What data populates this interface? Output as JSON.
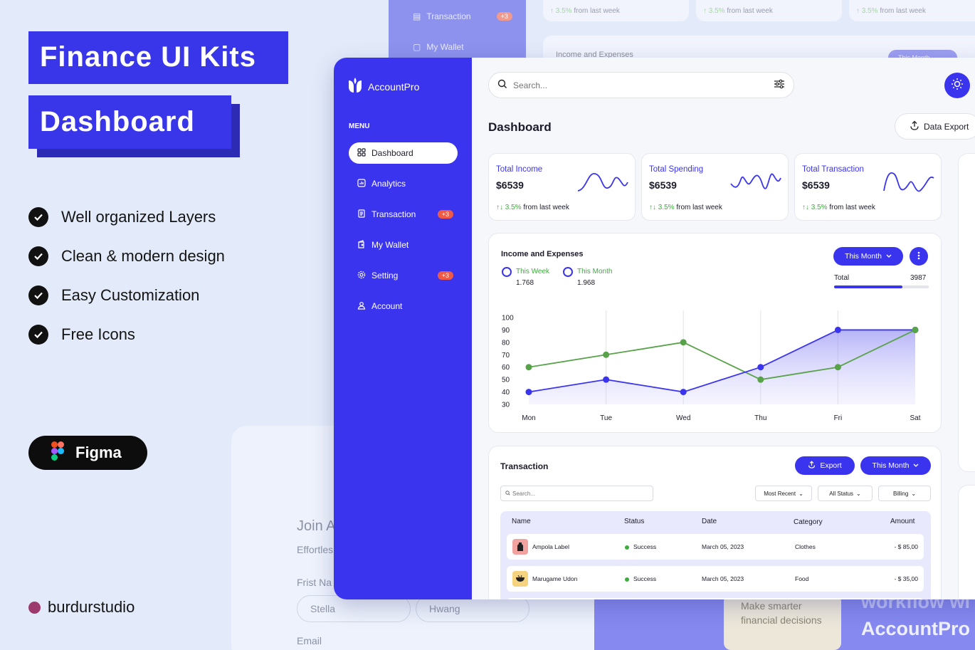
{
  "hero": {
    "line1": "Finance UI Kits",
    "line2": "Dashboard",
    "features": [
      "Well organized Layers",
      "Clean & modern design",
      "Easy Customization",
      "Free Icons"
    ],
    "figma_label": "Figma",
    "studio": "burdurstudio"
  },
  "background": {
    "side_items": [
      {
        "label": "Transaction",
        "badge": "+3"
      },
      {
        "label": "My Wallet"
      }
    ],
    "stat_foot": {
      "change": "3.5%",
      "text": "from last week"
    },
    "income_title": "Income and Expenses",
    "month_btn": "This Month",
    "form": {
      "title": "Join A",
      "subtitle": "Effortles",
      "first_name_label": "Frist Na",
      "first_name_value": "Stella",
      "last_name_value": "Hwang",
      "email_label": "Email"
    },
    "promo_note": "Make smarter financial decisions",
    "promo_line1": "workflow wi",
    "promo_brand": "AccountPro"
  },
  "app": {
    "brand": "AccountPro",
    "menu_label": "MENU",
    "nav": [
      {
        "label": "Dashboard",
        "icon": "grid-icon",
        "active": true
      },
      {
        "label": "Analytics",
        "icon": "chart-icon"
      },
      {
        "label": "Transaction",
        "icon": "receipt-icon",
        "badge": "+3"
      },
      {
        "label": "My Wallet",
        "icon": "wallet-icon"
      },
      {
        "label": "Setting",
        "icon": "gear-icon",
        "badge": "+3"
      },
      {
        "label": "Account",
        "icon": "user-icon"
      }
    ],
    "search_placeholder": "Search...",
    "page_title": "Dashboard",
    "export_label": "Data Export",
    "stats": [
      {
        "label": "Total Income",
        "value": "$6539",
        "change": "3.5%",
        "note": "from last week"
      },
      {
        "label": "Total Spending",
        "value": "$6539",
        "change": "3.5%",
        "note": "from last week"
      },
      {
        "label": "Total Transaction",
        "value": "$6539",
        "change": "3.5%",
        "note": "from last week"
      }
    ],
    "income_panel": {
      "title": "Income and Expenses",
      "month_btn": "This Month",
      "legend": [
        {
          "name": "This Week",
          "value": "1.768",
          "color": "#3b34ef"
        },
        {
          "name": "This Month",
          "value": "1.968",
          "color": "#3b34ef"
        }
      ],
      "total_label": "Total",
      "total_value": "3987",
      "total_progress": 0.72
    },
    "transaction_panel": {
      "title": "Transaction",
      "export_btn": "Export",
      "month_btn": "This Month",
      "search_placeholder": "Search...",
      "filters": [
        "Most Recent",
        "All Status",
        "Billing"
      ],
      "columns": [
        "Name",
        "Status",
        "Date",
        "Category",
        "Amount"
      ],
      "rows": [
        {
          "name": "Ampola Label",
          "status": "Success",
          "date": "March 05, 2023",
          "category": "Clothes",
          "amount": "- $ 85,00",
          "icon_bg": "#f2a3a0"
        },
        {
          "name": "Marugame Udon",
          "status": "Success",
          "date": "March 05, 2023",
          "category": "Food",
          "amount": "- $ 35,00",
          "icon_bg": "#f6d37e"
        }
      ]
    }
  },
  "chart_data": {
    "type": "line",
    "categories": [
      "Mon",
      "Tue",
      "Wed",
      "Thu",
      "Fri",
      "Sat"
    ],
    "series": [
      {
        "name": "This Week",
        "color": "#3b34ef",
        "values": [
          40,
          50,
          40,
          60,
          90,
          90
        ]
      },
      {
        "name": "This Month",
        "color": "#58a24a",
        "values": [
          60,
          70,
          80,
          50,
          60,
          90
        ]
      }
    ],
    "ylim": [
      30,
      100
    ],
    "yticks": [
      "100",
      "90",
      "80",
      "70",
      "60",
      "50",
      "40",
      "30"
    ],
    "grid": "vertical"
  }
}
